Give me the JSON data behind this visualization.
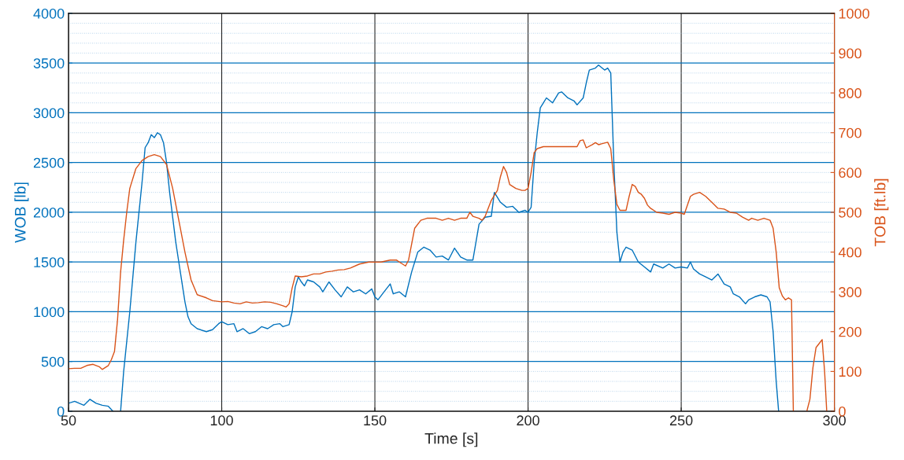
{
  "chart_data": {
    "type": "line",
    "xlabel": "Time [s]",
    "ylabel": "WOB [lb]",
    "y2label": "TOB [ft.lb]",
    "xlim": [
      50,
      300
    ],
    "xticks": [
      50,
      100,
      150,
      200,
      250,
      300
    ],
    "ylim": [
      0,
      4000
    ],
    "yticks": [
      0,
      500,
      1000,
      1500,
      2000,
      2500,
      3000,
      3500,
      4000
    ],
    "y2lim": [
      0,
      1000
    ],
    "y2ticks": [
      0,
      100,
      200,
      300,
      400,
      500,
      600,
      700,
      800,
      900,
      1000
    ],
    "grid": true,
    "legend": false,
    "marker": "none",
    "line_style": "solid",
    "series": [
      {
        "color": "#0072bd",
        "x": [
          50,
          52,
          55,
          57,
          59,
          61,
          63,
          64.5,
          66,
          67,
          68,
          70,
          72,
          74,
          75,
          76,
          77,
          78,
          79,
          80,
          81,
          82,
          83,
          84,
          85,
          86,
          87,
          88,
          89,
          90,
          92,
          95,
          97,
          99,
          100,
          102,
          104,
          105,
          107,
          109,
          111,
          113,
          115,
          117,
          119,
          120,
          122,
          123,
          124,
          125,
          126,
          127,
          128,
          130,
          132,
          133,
          135,
          137,
          139,
          141,
          143,
          145,
          147,
          149,
          150,
          151,
          153,
          155,
          156,
          158,
          160,
          162,
          164,
          166,
          168,
          170,
          172,
          174,
          176,
          178,
          180,
          182,
          184,
          186,
          188,
          189,
          191,
          193,
          195,
          197,
          199,
          200,
          201,
          202,
          203,
          204,
          205,
          206,
          208,
          210,
          211,
          213,
          215,
          216,
          218,
          219,
          220,
          222,
          223,
          225,
          226,
          227,
          228,
          229,
          230,
          231,
          232,
          234,
          236,
          238,
          240,
          241,
          244,
          246,
          248,
          250,
          252,
          253,
          254,
          256,
          258,
          260,
          262,
          264,
          266,
          267,
          269,
          271,
          272,
          274,
          276,
          278,
          279,
          280,
          281,
          281.8
        ],
        "values": [
          80,
          100,
          60,
          120,
          80,
          60,
          50,
          0,
          null,
          0,
          400,
          1000,
          1700,
          2300,
          2650,
          2700,
          2780,
          2750,
          2800,
          2780,
          2700,
          2500,
          2200,
          1950,
          1700,
          1500,
          1300,
          1100,
          950,
          880,
          830,
          800,
          820,
          880,
          900,
          870,
          880,
          800,
          830,
          780,
          800,
          850,
          830,
          870,
          880,
          850,
          870,
          1000,
          1250,
          1350,
          1300,
          1260,
          1320,
          1300,
          1250,
          1200,
          1300,
          1220,
          1150,
          1250,
          1200,
          1220,
          1180,
          1230,
          1150,
          1120,
          1200,
          1280,
          1180,
          1200,
          1150,
          1400,
          1600,
          1650,
          1620,
          1550,
          1560,
          1520,
          1640,
          1550,
          1520,
          1520,
          1880,
          1950,
          1960,
          2200,
          2100,
          2050,
          2060,
          2000,
          2020,
          2000,
          2050,
          2500,
          2800,
          3050,
          3100,
          3150,
          3100,
          3200,
          3210,
          3150,
          3120,
          3080,
          3150,
          3300,
          3430,
          3450,
          3480,
          3430,
          3450,
          3400,
          2500,
          1800,
          1500,
          1600,
          1650,
          1620,
          1500,
          1450,
          1400,
          1480,
          1440,
          1480,
          1440,
          1450,
          1440,
          1500,
          1430,
          1380,
          1350,
          1320,
          1380,
          1280,
          1250,
          1180,
          1150,
          1080,
          1120,
          1150,
          1170,
          1150,
          1100,
          800,
          300,
          0
        ]
      },
      {
        "color": "#d95319",
        "axis": "y2",
        "x": [
          50,
          52,
          54,
          56,
          58,
          60,
          61,
          62,
          63,
          64,
          65,
          66,
          67,
          68,
          69,
          70,
          72,
          74,
          76,
          78,
          80,
          82,
          84,
          86,
          88,
          90,
          92,
          95,
          97,
          100,
          102,
          104,
          106,
          108,
          110,
          112,
          114,
          116,
          118,
          120,
          121,
          122,
          123,
          124,
          126,
          128,
          130,
          132,
          134,
          136,
          138,
          140,
          142,
          145,
          148,
          150,
          152,
          155,
          157,
          158,
          160,
          161,
          162,
          163,
          165,
          167,
          170,
          172,
          174,
          176,
          178,
          180,
          181,
          182,
          184,
          185,
          186,
          188,
          190,
          191,
          192,
          193,
          194,
          196,
          198,
          199,
          200,
          201,
          202,
          203,
          205,
          208,
          212,
          216,
          217,
          218,
          219,
          221,
          222,
          223,
          224,
          226,
          227,
          228,
          229,
          230,
          232,
          233,
          234,
          235,
          236,
          237,
          238,
          239,
          240,
          242,
          244,
          246,
          248,
          250,
          251,
          253,
          254,
          256,
          258,
          260,
          262,
          264,
          266,
          268,
          270,
          272,
          273,
          275,
          277,
          279,
          280,
          281,
          282,
          283,
          284,
          285,
          286,
          286.6,
          289,
          291,
          292,
          293,
          294,
          295,
          296,
          296.8,
          297.5
        ],
        "values": [
          107,
          108,
          108,
          115,
          118,
          112,
          105,
          110,
          115,
          130,
          150,
          230,
          350,
          430,
          500,
          560,
          610,
          630,
          640,
          645,
          640,
          620,
          560,
          480,
          400,
          330,
          293,
          285,
          278,
          275,
          276,
          272,
          270,
          275,
          272,
          273,
          275,
          274,
          270,
          265,
          262,
          270,
          310,
          340,
          338,
          340,
          345,
          345,
          350,
          352,
          355,
          356,
          360,
          370,
          375,
          375,
          375,
          380,
          380,
          375,
          365,
          380,
          420,
          460,
          480,
          485,
          485,
          480,
          485,
          480,
          485,
          485,
          500,
          490,
          485,
          480,
          490,
          530,
          555,
          590,
          615,
          600,
          570,
          560,
          555,
          555,
          560,
          600,
          650,
          660,
          665,
          665,
          665,
          665,
          680,
          682,
          662,
          670,
          675,
          670,
          672,
          676,
          660,
          580,
          520,
          505,
          505,
          540,
          570,
          565,
          550,
          545,
          535,
          518,
          510,
          500,
          498,
          495,
          500,
          498,
          495,
          540,
          545,
          550,
          540,
          525,
          510,
          508,
          500,
          498,
          488,
          480,
          485,
          480,
          485,
          480,
          460,
          400,
          310,
          290,
          280,
          285,
          280,
          0,
          null,
          0,
          30,
          110,
          160,
          170,
          180,
          100,
          0
        ]
      }
    ]
  }
}
